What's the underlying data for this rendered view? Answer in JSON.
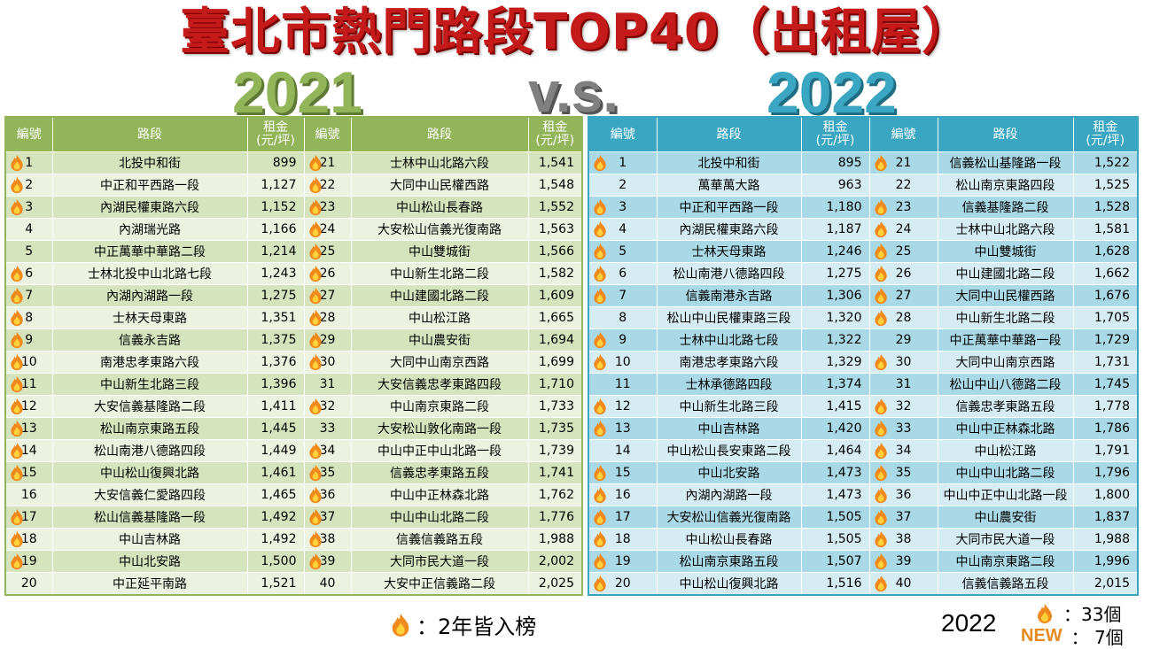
{
  "title": "臺北市熱門路段TOP40（出租屋）",
  "year_left": "2021",
  "vs": "v.s.",
  "year_right": "2022",
  "headers": {
    "no": "編號",
    "road": "路段",
    "rent": "租金",
    "unit": "(元/坪)"
  },
  "t2021": {
    "left": [
      {
        "no": "1",
        "road": "北投中和街",
        "rent": "899",
        "flame": true
      },
      {
        "no": "2",
        "road": "中正和平西路一段",
        "rent": "1,127",
        "flame": true
      },
      {
        "no": "3",
        "road": "內湖民權東路六段",
        "rent": "1,152",
        "flame": true
      },
      {
        "no": "4",
        "road": "內湖瑞光路",
        "rent": "1,166",
        "flame": false
      },
      {
        "no": "5",
        "road": "中正萬華中華路二段",
        "rent": "1,214",
        "flame": false
      },
      {
        "no": "6",
        "road": "士林北投中山北路七段",
        "rent": "1,243",
        "flame": true
      },
      {
        "no": "7",
        "road": "內湖內湖路一段",
        "rent": "1,275",
        "flame": true
      },
      {
        "no": "8",
        "road": "士林天母東路",
        "rent": "1,351",
        "flame": true
      },
      {
        "no": "9",
        "road": "信義永吉路",
        "rent": "1,375",
        "flame": true
      },
      {
        "no": "10",
        "road": "南港忠孝東路六段",
        "rent": "1,376",
        "flame": true
      },
      {
        "no": "11",
        "road": "中山新生北路三段",
        "rent": "1,396",
        "flame": true
      },
      {
        "no": "12",
        "road": "大安信義基隆路二段",
        "rent": "1,411",
        "flame": true
      },
      {
        "no": "13",
        "road": "松山南京東路五段",
        "rent": "1,445",
        "flame": true
      },
      {
        "no": "14",
        "road": "松山南港八德路四段",
        "rent": "1,449",
        "flame": true
      },
      {
        "no": "15",
        "road": "中山松山復興北路",
        "rent": "1,461",
        "flame": true
      },
      {
        "no": "16",
        "road": "大安信義仁愛路四段",
        "rent": "1,465",
        "flame": false
      },
      {
        "no": "17",
        "road": "松山信義基隆路一段",
        "rent": "1,492",
        "flame": true
      },
      {
        "no": "18",
        "road": "中山吉林路",
        "rent": "1,492",
        "flame": true
      },
      {
        "no": "19",
        "road": "中山北安路",
        "rent": "1,500",
        "flame": true
      },
      {
        "no": "20",
        "road": "中正延平南路",
        "rent": "1,521",
        "flame": false
      }
    ],
    "right": [
      {
        "no": "21",
        "road": "士林中山北路六段",
        "rent": "1,541",
        "flame": true
      },
      {
        "no": "22",
        "road": "大同中山民權西路",
        "rent": "1,548",
        "flame": true
      },
      {
        "no": "23",
        "road": "中山松山長春路",
        "rent": "1,552",
        "flame": true
      },
      {
        "no": "24",
        "road": "大安松山信義光復南路",
        "rent": "1,563",
        "flame": true
      },
      {
        "no": "25",
        "road": "中山雙城街",
        "rent": "1,566",
        "flame": true
      },
      {
        "no": "26",
        "road": "中山新生北路二段",
        "rent": "1,582",
        "flame": true
      },
      {
        "no": "27",
        "road": "中山建國北路二段",
        "rent": "1,609",
        "flame": true
      },
      {
        "no": "28",
        "road": "中山松江路",
        "rent": "1,665",
        "flame": true
      },
      {
        "no": "29",
        "road": "中山農安街",
        "rent": "1,694",
        "flame": true
      },
      {
        "no": "30",
        "road": "大同中山南京西路",
        "rent": "1,699",
        "flame": true
      },
      {
        "no": "31",
        "road": "大安信義忠孝東路四段",
        "rent": "1,710",
        "flame": false
      },
      {
        "no": "32",
        "road": "中山南京東路二段",
        "rent": "1,733",
        "flame": true
      },
      {
        "no": "33",
        "road": "大安松山敦化南路一段",
        "rent": "1,735",
        "flame": false
      },
      {
        "no": "34",
        "road": "中山中正中山北路一段",
        "rent": "1,739",
        "flame": true
      },
      {
        "no": "35",
        "road": "信義忠孝東路五段",
        "rent": "1,741",
        "flame": true
      },
      {
        "no": "36",
        "road": "中山中正林森北路",
        "rent": "1,762",
        "flame": true
      },
      {
        "no": "37",
        "road": "中山中山北路二段",
        "rent": "1,776",
        "flame": true
      },
      {
        "no": "38",
        "road": "信義信義路五段",
        "rent": "1,988",
        "flame": true
      },
      {
        "no": "39",
        "road": "大同市民大道一段",
        "rent": "2,002",
        "flame": true
      },
      {
        "no": "40",
        "road": "大安中正信義路二段",
        "rent": "2,025",
        "flame": false
      }
    ]
  },
  "t2022": {
    "left": [
      {
        "no": "1",
        "road": "北投中和街",
        "rent": "895",
        "flame": true
      },
      {
        "no": "2",
        "road": "萬華萬大路",
        "rent": "963",
        "flame": false
      },
      {
        "no": "3",
        "road": "中正和平西路一段",
        "rent": "1,180",
        "flame": true
      },
      {
        "no": "4",
        "road": "內湖民權東路六段",
        "rent": "1,187",
        "flame": true
      },
      {
        "no": "5",
        "road": "士林天母東路",
        "rent": "1,246",
        "flame": true
      },
      {
        "no": "6",
        "road": "松山南港八德路四段",
        "rent": "1,275",
        "flame": true
      },
      {
        "no": "7",
        "road": "信義南港永吉路",
        "rent": "1,306",
        "flame": true
      },
      {
        "no": "8",
        "road": "松山中山民權東路三段",
        "rent": "1,320",
        "flame": false
      },
      {
        "no": "9",
        "road": "士林中山北路七段",
        "rent": "1,322",
        "flame": true
      },
      {
        "no": "10",
        "road": "南港忠孝東路六段",
        "rent": "1,329",
        "flame": true
      },
      {
        "no": "11",
        "road": "士林承德路四段",
        "rent": "1,374",
        "flame": false
      },
      {
        "no": "12",
        "road": "中山新生北路三段",
        "rent": "1,415",
        "flame": true
      },
      {
        "no": "13",
        "road": "中山吉林路",
        "rent": "1,420",
        "flame": true
      },
      {
        "no": "14",
        "road": "中山松山長安東路二段",
        "rent": "1,464",
        "flame": false
      },
      {
        "no": "15",
        "road": "中山北安路",
        "rent": "1,473",
        "flame": true
      },
      {
        "no": "16",
        "road": "內湖內湖路一段",
        "rent": "1,473",
        "flame": true
      },
      {
        "no": "17",
        "road": "大安松山信義光復南路",
        "rent": "1,505",
        "flame": true
      },
      {
        "no": "18",
        "road": "中山松山長春路",
        "rent": "1,505",
        "flame": true
      },
      {
        "no": "19",
        "road": "松山南京東路五段",
        "rent": "1,507",
        "flame": true
      },
      {
        "no": "20",
        "road": "中山松山復興北路",
        "rent": "1,516",
        "flame": true
      }
    ],
    "right": [
      {
        "no": "21",
        "road": "信義松山基隆路一段",
        "rent": "1,522",
        "flame": true
      },
      {
        "no": "22",
        "road": "松山南京東路四段",
        "rent": "1,525",
        "flame": false
      },
      {
        "no": "23",
        "road": "信義基隆路二段",
        "rent": "1,528",
        "flame": true
      },
      {
        "no": "24",
        "road": "士林中山北路六段",
        "rent": "1,581",
        "flame": true
      },
      {
        "no": "25",
        "road": "中山雙城街",
        "rent": "1,628",
        "flame": true
      },
      {
        "no": "26",
        "road": "中山建國北路二段",
        "rent": "1,662",
        "flame": true
      },
      {
        "no": "27",
        "road": "大同中山民權西路",
        "rent": "1,676",
        "flame": true
      },
      {
        "no": "28",
        "road": "中山新生北路二段",
        "rent": "1,705",
        "flame": true
      },
      {
        "no": "29",
        "road": "中正萬華中華路一段",
        "rent": "1,729",
        "flame": false
      },
      {
        "no": "30",
        "road": "大同中山南京西路",
        "rent": "1,731",
        "flame": true
      },
      {
        "no": "31",
        "road": "松山中山八德路二段",
        "rent": "1,745",
        "flame": false
      },
      {
        "no": "32",
        "road": "信義忠孝東路五段",
        "rent": "1,778",
        "flame": true
      },
      {
        "no": "33",
        "road": "中山中正林森北路",
        "rent": "1,786",
        "flame": true
      },
      {
        "no": "34",
        "road": "中山松江路",
        "rent": "1,791",
        "flame": true
      },
      {
        "no": "35",
        "road": "中山中山北路二段",
        "rent": "1,796",
        "flame": true
      },
      {
        "no": "36",
        "road": "中山中正中山北路一段",
        "rent": "1,800",
        "flame": true
      },
      {
        "no": "37",
        "road": "中山農安街",
        "rent": "1,837",
        "flame": true
      },
      {
        "no": "38",
        "road": "大同市民大道一段",
        "rent": "1,988",
        "flame": true
      },
      {
        "no": "39",
        "road": "中山南京東路二段",
        "rent": "1,996",
        "flame": true
      },
      {
        "no": "40",
        "road": "信義信義路五段",
        "rent": "2,015",
        "flame": true
      }
    ]
  },
  "legend": {
    "text": "：2年皆入榜",
    "icon": "flame-icon"
  },
  "stats": {
    "year": "2022",
    "flame_count": "：33個",
    "new_label": "NEW",
    "new_count": "：  7個"
  }
}
